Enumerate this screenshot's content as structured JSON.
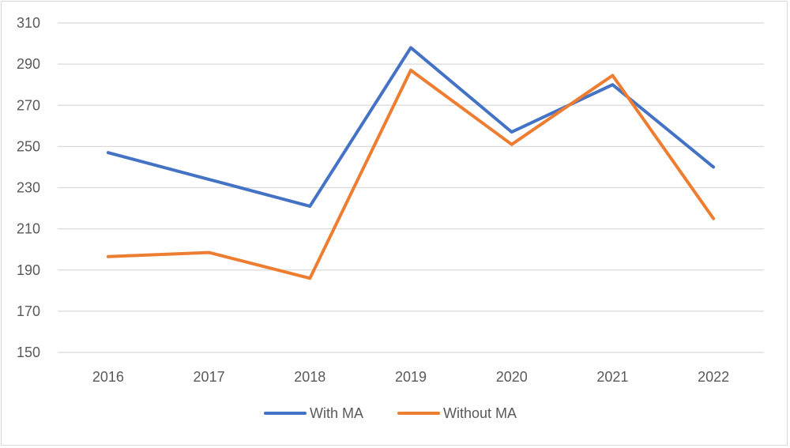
{
  "chart_data": {
    "type": "line",
    "title": "",
    "xlabel": "",
    "ylabel": "",
    "categories": [
      "2016",
      "2017",
      "2018",
      "2019",
      "2020",
      "2021",
      "2022"
    ],
    "ylim": [
      150,
      310
    ],
    "yticks": [
      150,
      170,
      190,
      210,
      230,
      250,
      270,
      290,
      310
    ],
    "grid": true,
    "legend_position": "bottom",
    "series": [
      {
        "name": "With MA",
        "color": "#4472C4",
        "values": [
          247,
          234,
          221,
          298,
          257,
          280,
          240
        ]
      },
      {
        "name": "Without MA",
        "color": "#ED7D31",
        "values": [
          196.5,
          198.5,
          186,
          287,
          251,
          284.5,
          215
        ]
      }
    ]
  }
}
